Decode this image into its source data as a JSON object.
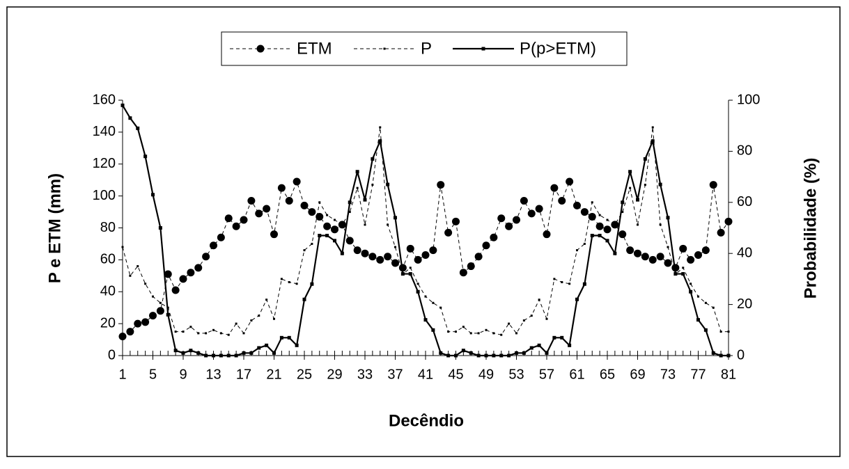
{
  "chart_data": {
    "type": "line",
    "legend": "top",
    "x": [
      1,
      2,
      3,
      4,
      5,
      6,
      7,
      8,
      9,
      10,
      11,
      12,
      13,
      14,
      15,
      16,
      17,
      18,
      19,
      20,
      21,
      22,
      23,
      24,
      25,
      26,
      27,
      28,
      29,
      30,
      31,
      32,
      33,
      34,
      35,
      36,
      37,
      38,
      39,
      40,
      41,
      42,
      43,
      44,
      45,
      46,
      47,
      48,
      49,
      50,
      51,
      52,
      53,
      54,
      55,
      56,
      57,
      58,
      59,
      60,
      61,
      62,
      63,
      64,
      65,
      66,
      67,
      68,
      69,
      70,
      71,
      72,
      73,
      74,
      75,
      76,
      77,
      78,
      79,
      80,
      81
    ],
    "xlim": [
      1,
      81
    ],
    "xticks": [
      1,
      5,
      9,
      13,
      17,
      21,
      25,
      29,
      33,
      37,
      41,
      45,
      49,
      53,
      57,
      61,
      65,
      69,
      73,
      77,
      81
    ],
    "ylim": [
      0,
      160
    ],
    "yticks": [
      0,
      20,
      40,
      60,
      80,
      100,
      120,
      140,
      160
    ],
    "y2lim": [
      0,
      100
    ],
    "y2ticks": [
      0,
      20,
      40,
      60,
      80,
      100
    ],
    "xlabel": "Decêndio",
    "ylabel": "P e ETM (mm)",
    "y2label": "Probabilidade (%)",
    "series": [
      {
        "name": "ETM",
        "color": "#000000",
        "style": "dashed",
        "marker": "circle",
        "values": [
          12,
          15,
          20,
          21,
          25,
          28,
          51,
          41,
          48,
          52,
          55,
          62,
          69,
          74,
          86,
          81,
          85,
          97,
          89,
          92,
          76,
          105,
          97,
          109,
          94,
          90,
          87,
          81,
          79,
          82,
          72,
          66,
          64,
          62,
          60,
          62,
          58,
          55,
          67,
          60,
          63,
          66,
          107,
          77,
          84,
          52,
          56,
          62,
          69,
          74,
          86,
          81,
          85,
          97,
          89,
          92,
          76,
          105,
          97,
          109,
          94,
          90,
          87,
          81,
          79,
          82,
          76,
          66,
          64,
          62,
          60,
          62,
          58,
          55,
          67,
          60,
          63,
          66,
          107,
          77,
          84
        ]
      },
      {
        "name": "P",
        "color": "#000000",
        "style": "dashed",
        "marker": "dot",
        "values": [
          68,
          50,
          56,
          45,
          37,
          33,
          30,
          15,
          15,
          18,
          14,
          14,
          16,
          14,
          13,
          20,
          14,
          22,
          25,
          35,
          23,
          48,
          46,
          45,
          66,
          70,
          96,
          88,
          85,
          82,
          90,
          105,
          82,
          107,
          143,
          82,
          68,
          51,
          55,
          45,
          37,
          33,
          30,
          15,
          15,
          18,
          14,
          14,
          16,
          14,
          13,
          20,
          14,
          22,
          25,
          35,
          23,
          48,
          46,
          45,
          66,
          70,
          96,
          88,
          85,
          82,
          90,
          105,
          82,
          107,
          143,
          82,
          68,
          51,
          55,
          45,
          37,
          33,
          30,
          15,
          15
        ]
      },
      {
        "name": "P(p>ETM)",
        "color": "#000000",
        "style": "solid",
        "marker": "square",
        "axis": "y2",
        "values": [
          98,
          93,
          89,
          78,
          63,
          50,
          16,
          2,
          1,
          2,
          1,
          0,
          0,
          0,
          0,
          0,
          1,
          1,
          3,
          4,
          1,
          7,
          7,
          4,
          22,
          28,
          47,
          47,
          45,
          40,
          60,
          72,
          61,
          77,
          84,
          67,
          54,
          32,
          32,
          25,
          14,
          10,
          1,
          0,
          0,
          2,
          1,
          0,
          0,
          0,
          0,
          0,
          1,
          1,
          3,
          4,
          1,
          7,
          7,
          4,
          22,
          28,
          47,
          47,
          45,
          40,
          60,
          72,
          61,
          77,
          84,
          67,
          54,
          32,
          32,
          25,
          14,
          10,
          1,
          0,
          0
        ]
      }
    ]
  }
}
